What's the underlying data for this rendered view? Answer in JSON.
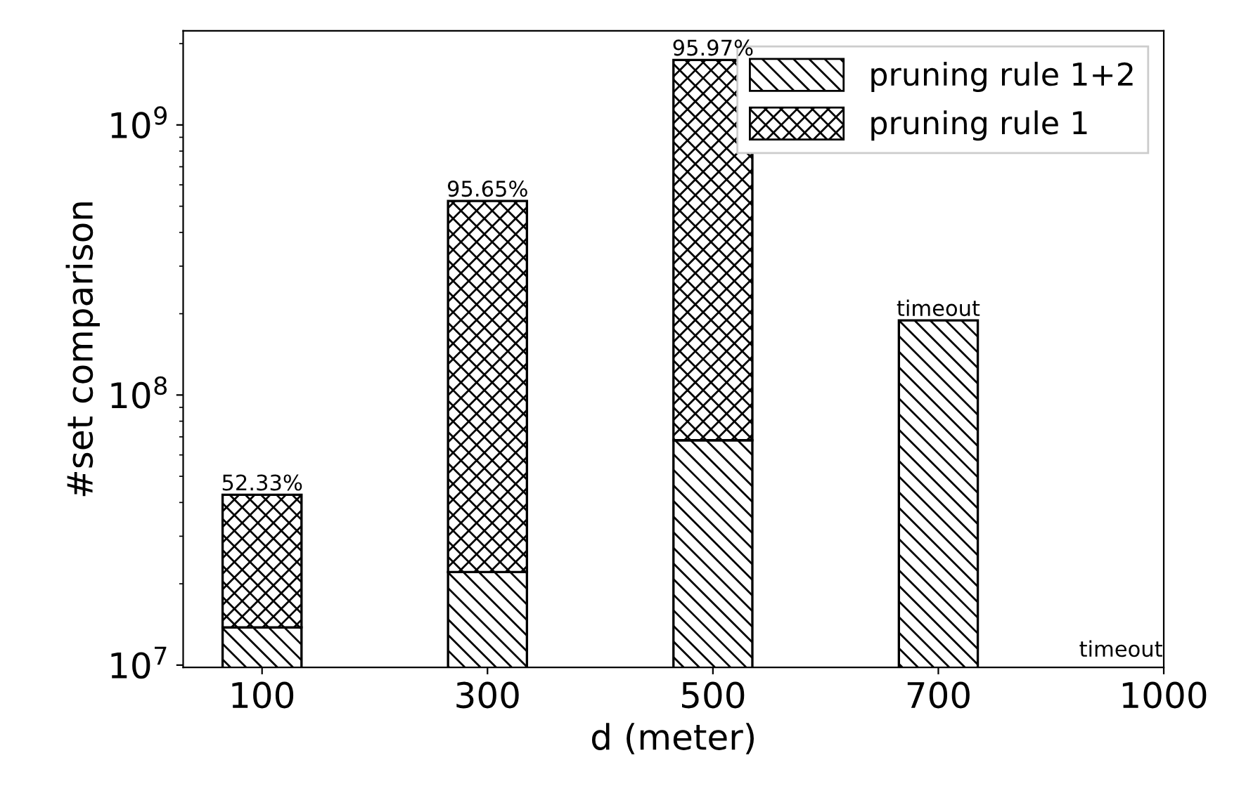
{
  "chart_data": {
    "type": "bar",
    "stacked": true,
    "log": true,
    "xlabel": "d (meter)",
    "ylabel": "#set comparison",
    "categories": [
      "100",
      "300",
      "500",
      "700",
      "1000"
    ],
    "series": [
      {
        "name": "pruning rule 1+2",
        "color": "#000000",
        "values": [
          13800000,
          22100000,
          68000000,
          189000000,
          null
        ]
      },
      {
        "name": "pruning rule 1",
        "color": "#000000",
        "values": [
          28900000,
          501000000,
          1672000000,
          null,
          null
        ]
      }
    ],
    "annotations": [
      {
        "text": "52.33%",
        "x": "100",
        "y": 42700000
      },
      {
        "text": "95.65%",
        "x": "300",
        "y": 523100000
      },
      {
        "text": "95.97%",
        "x": "500",
        "y": 1740000000
      },
      {
        "text": "timeout",
        "x": "700",
        "y": 189000000
      },
      "timeout"
    ],
    "ylim": [
      9800000,
      2230000000
    ],
    "yticks": [
      {
        "value": 10000000,
        "label": "10$^{7}$"
      },
      {
        "value": 100000000,
        "label": "10$^{8}$"
      },
      {
        "value": 1000000000,
        "label": "10$^{9}$"
      }
    ],
    "legend": "top right",
    "grid": false
  }
}
